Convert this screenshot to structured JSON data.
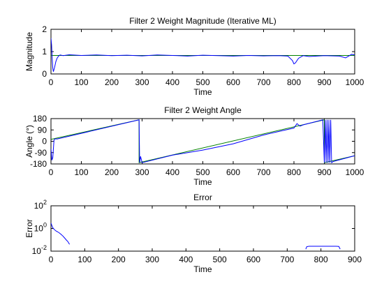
{
  "colors": {
    "background": "#ffffff",
    "estimate": "#0000ff",
    "true_value": "#008000",
    "axes": "#000000"
  },
  "chart_data": [
    {
      "type": "line",
      "title": "Filter 2 Weight Magnitude (Iterative ML)",
      "xlabel": "Time",
      "ylabel": "Magnitude",
      "xlim": [
        0,
        1000
      ],
      "ylim": [
        0,
        2
      ],
      "xticks": [
        0,
        100,
        200,
        300,
        400,
        500,
        600,
        700,
        800,
        900,
        1000
      ],
      "yticks": [
        0,
        1,
        2
      ],
      "yscale": "linear",
      "grid": false,
      "legend": "none",
      "series": [
        {
          "color": "#008000",
          "x": [
            0,
            1000
          ],
          "y": [
            0.83,
            0.83
          ]
        },
        {
          "color": "#0000ff",
          "x": [
            0,
            2,
            4,
            6,
            8,
            12,
            16,
            20,
            25,
            30,
            40,
            60,
            100,
            150,
            200,
            250,
            300,
            350,
            400,
            450,
            500,
            550,
            600,
            650,
            700,
            750,
            780,
            795,
            800,
            805,
            815,
            830,
            850,
            900,
            950,
            970,
            980,
            990,
            1000
          ],
          "y": [
            1.6,
            1.3,
            0.7,
            0.25,
            0.1,
            0.3,
            0.55,
            0.7,
            0.8,
            0.85,
            0.82,
            0.86,
            0.83,
            0.85,
            0.82,
            0.84,
            0.81,
            0.85,
            0.83,
            0.8,
            0.84,
            0.82,
            0.8,
            0.83,
            0.81,
            0.82,
            0.8,
            0.6,
            0.45,
            0.5,
            0.7,
            0.82,
            0.78,
            0.82,
            0.8,
            0.72,
            0.8,
            0.88,
            0.85
          ]
        }
      ]
    },
    {
      "type": "line",
      "title": "Filter 2 Weight Angle",
      "xlabel": "Time",
      "ylabel": "Angle (°)",
      "xlim": [
        0,
        1000
      ],
      "ylim": [
        -180,
        180
      ],
      "xticks": [
        0,
        100,
        200,
        300,
        400,
        500,
        600,
        700,
        800,
        900,
        1000
      ],
      "yticks": [
        -180,
        -90,
        0,
        90,
        180
      ],
      "yscale": "linear",
      "grid": false,
      "legend": "none",
      "series": [
        {
          "color": "#008000",
          "x": [
            0,
            290,
            290.1,
            900,
            900.1,
            1000
          ],
          "y": [
            15,
            170,
            -170,
            170,
            -170,
            -115
          ]
        },
        {
          "color": "#0000ff",
          "x": [
            0,
            3,
            6,
            10,
            14,
            20,
            290,
            292,
            295,
            300,
            400,
            500,
            600,
            700,
            800,
            810,
            820,
            830,
            895,
            900,
            903,
            906,
            909,
            912,
            915,
            918,
            921,
            924,
            930,
            1000
          ],
          "y": [
            -60,
            -150,
            -130,
            10,
            20,
            18,
            170,
            -170,
            -120,
            -170,
            -110,
            -70,
            -20,
            50,
            105,
            140,
            120,
            130,
            170,
            -170,
            170,
            -170,
            170,
            -170,
            170,
            -170,
            170,
            -170,
            -160,
            -115
          ]
        }
      ]
    },
    {
      "type": "line",
      "title": "Error",
      "xlabel": "Time",
      "ylabel": "Error",
      "xlim": [
        0,
        900
      ],
      "ylim": [
        0.01,
        100
      ],
      "xticks": [
        0,
        100,
        200,
        300,
        400,
        500,
        600,
        700,
        800,
        900
      ],
      "yticks": [
        {
          "value": 0.01,
          "base": "10",
          "exp": "-2"
        },
        {
          "value": 1,
          "base": "10",
          "exp": "0"
        },
        {
          "value": 100,
          "base": "10",
          "exp": "2"
        }
      ],
      "yscale": "log",
      "grid": false,
      "legend": "none",
      "series": [
        {
          "color": "#0000ff",
          "x": [
            0,
            5,
            10,
            15,
            20,
            25,
            30,
            35,
            40,
            45,
            50,
            55
          ],
          "y": [
            3,
            1.2,
            0.8,
            0.6,
            0.5,
            0.4,
            0.3,
            0.22,
            0.15,
            0.1,
            0.07,
            0.04
          ]
        },
        {
          "color": "#0000ff",
          "x": [
            755,
            758,
            765,
            790,
            820,
            845,
            853,
            857
          ],
          "y": [
            0.015,
            0.025,
            0.027,
            0.027,
            0.027,
            0.027,
            0.026,
            0.015
          ]
        }
      ]
    }
  ]
}
